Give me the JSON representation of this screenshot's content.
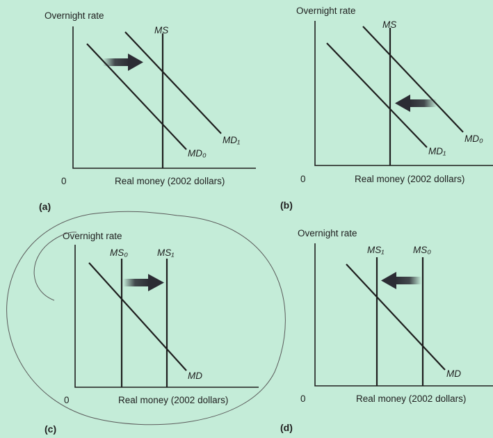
{
  "figure": {
    "panels": [
      {
        "id": "(a)",
        "y_label": "Overnight rate",
        "x_label": "Real money (2002 dollars)",
        "origin": "0",
        "supply_labels": [
          "MS"
        ],
        "demand_labels": [
          "MD₀",
          "MD₁"
        ],
        "shift": "demand increases from MD₀ to MD₁"
      },
      {
        "id": "(b)",
        "y_label": "Overnight rate",
        "x_label": "Real money (2002 dollars)",
        "origin": "0",
        "supply_labels": [
          "MS"
        ],
        "demand_labels": [
          "MD₀",
          "MD₁"
        ],
        "shift": "demand decreases from MD₀ to MD₁"
      },
      {
        "id": "(c)",
        "y_label": "Overnight rate",
        "x_label": "Real money (2002 dollars)",
        "origin": "0",
        "supply_labels": [
          "MS₀",
          "MS₁"
        ],
        "demand_labels": [
          "MD"
        ],
        "shift": "supply increases from MS₀ to MS₁",
        "annotation": "hand-drawn circle around panel"
      },
      {
        "id": "(d)",
        "y_label": "Overnight rate",
        "x_label": "Real money (2002 dollars)",
        "origin": "0",
        "supply_labels": [
          "MS₁",
          "MS₀"
        ],
        "demand_labels": [
          "MD"
        ],
        "shift": "supply decreases from MS₀ to MS₁"
      }
    ]
  }
}
